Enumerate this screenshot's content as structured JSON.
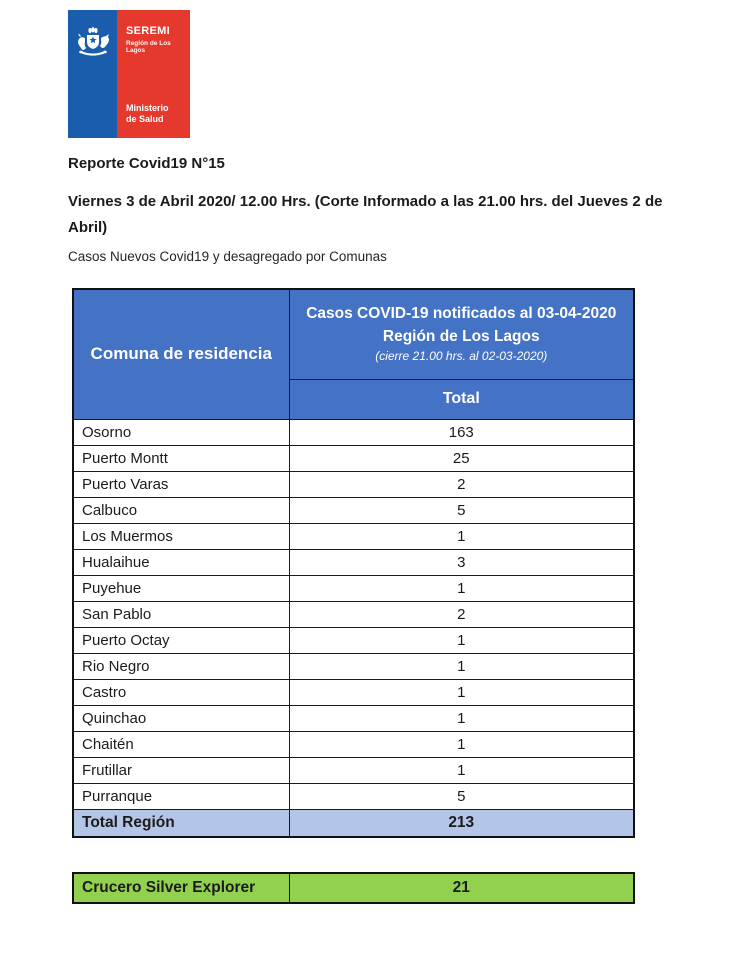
{
  "logo": {
    "seremi": "SEREMI",
    "region": "Región de Los Lagos",
    "ministry": "Ministerio de Salud"
  },
  "report": {
    "title": "Reporte Covid19 N°15",
    "date_line": "Viernes 3 de Abril 2020/ 12.00 Hrs. (Corte Informado a las 21.00 hrs. del Jueves 2 de Abril)",
    "subtitle": "Casos Nuevos Covid19 y desagregado por Comunas"
  },
  "table": {
    "col1_header": "Comuna de residencia",
    "col2_header_line1": "Casos COVID-19 notificados al 03-04-2020",
    "col2_header_line2": "Región de Los Lagos",
    "col2_header_line3": "(cierre 21.00 hrs. al 02-03-2020)",
    "col2_subheader": "Total",
    "rows": [
      {
        "comuna": "Osorno",
        "total": "163"
      },
      {
        "comuna": "Puerto Montt",
        "total": "25"
      },
      {
        "comuna": "Puerto Varas",
        "total": "2"
      },
      {
        "comuna": "Calbuco",
        "total": "5"
      },
      {
        "comuna": "Los Muermos",
        "total": "1"
      },
      {
        "comuna": "Hualaihue",
        "total": "3"
      },
      {
        "comuna": "Puyehue",
        "total": "1"
      },
      {
        "comuna": "San Pablo",
        "total": "2"
      },
      {
        "comuna": "Puerto Octay",
        "total": "1"
      },
      {
        "comuna": "Rio Negro",
        "total": "1"
      },
      {
        "comuna": "Castro",
        "total": "1"
      },
      {
        "comuna": "Quinchao",
        "total": "1"
      },
      {
        "comuna": "Chaitén",
        "total": "1"
      },
      {
        "comuna": "Frutillar",
        "total": "1"
      },
      {
        "comuna": "Purranque",
        "total": "5"
      }
    ],
    "total_label": "Total Región",
    "total_value": "213"
  },
  "cruise": {
    "label": "Crucero Silver Explorer",
    "value": "21"
  },
  "colors": {
    "header_blue": "#4472C4",
    "total_bg": "#B4C6E7",
    "cruise_green": "#92D050",
    "logo_blue": "#1A5DAD",
    "logo_red": "#E6392E"
  },
  "chart_data": {
    "type": "table",
    "title": "Casos COVID-19 notificados al 03-04-2020 Región de Los Lagos",
    "columns": [
      "Comuna de residencia",
      "Total"
    ],
    "rows": [
      [
        "Osorno",
        163
      ],
      [
        "Puerto Montt",
        25
      ],
      [
        "Puerto Varas",
        2
      ],
      [
        "Calbuco",
        5
      ],
      [
        "Los Muermos",
        1
      ],
      [
        "Hualaihue",
        3
      ],
      [
        "Puyehue",
        1
      ],
      [
        "San Pablo",
        2
      ],
      [
        "Puerto Octay",
        1
      ],
      [
        "Rio Negro",
        1
      ],
      [
        "Castro",
        1
      ],
      [
        "Quinchao",
        1
      ],
      [
        "Chaitén",
        1
      ],
      [
        "Frutillar",
        1
      ],
      [
        "Purranque",
        5
      ],
      [
        "Total Región",
        213
      ],
      [
        "Crucero Silver Explorer",
        21
      ]
    ]
  }
}
